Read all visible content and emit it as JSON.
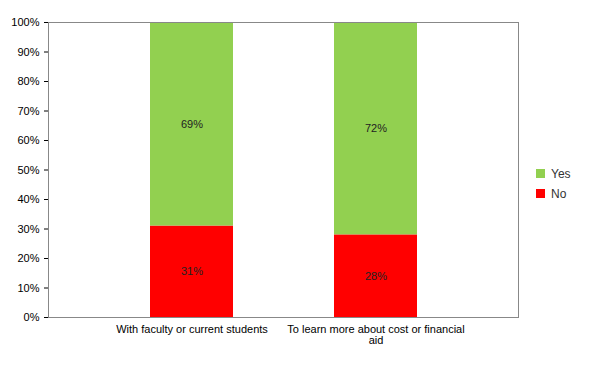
{
  "chart_data": {
    "type": "bar",
    "stacked": true,
    "data_labels": true,
    "grid": false,
    "legend": "right",
    "categories": [
      "With faculty or current students",
      "To learn more about cost or financial aid"
    ],
    "series": [
      {
        "name": "No",
        "color": "#ff0000",
        "values": [
          31,
          28
        ],
        "value_labels": [
          "31%",
          "28%"
        ]
      },
      {
        "name": "Yes",
        "color": "#92d050",
        "values": [
          69,
          72
        ],
        "value_labels": [
          "69%",
          "72%"
        ]
      }
    ],
    "ylim": [
      0,
      100
    ],
    "yticks": [
      {
        "value": 0,
        "label": "0%"
      },
      {
        "value": 10,
        "label": "10%"
      },
      {
        "value": 20,
        "label": "20%"
      },
      {
        "value": 30,
        "label": "30%"
      },
      {
        "value": 40,
        "label": "40%"
      },
      {
        "value": 50,
        "label": "50%"
      },
      {
        "value": 60,
        "label": "60%"
      },
      {
        "value": 70,
        "label": "70%"
      },
      {
        "value": 80,
        "label": "80%"
      },
      {
        "value": 90,
        "label": "90%"
      },
      {
        "value": 100,
        "label": "100%"
      }
    ]
  }
}
